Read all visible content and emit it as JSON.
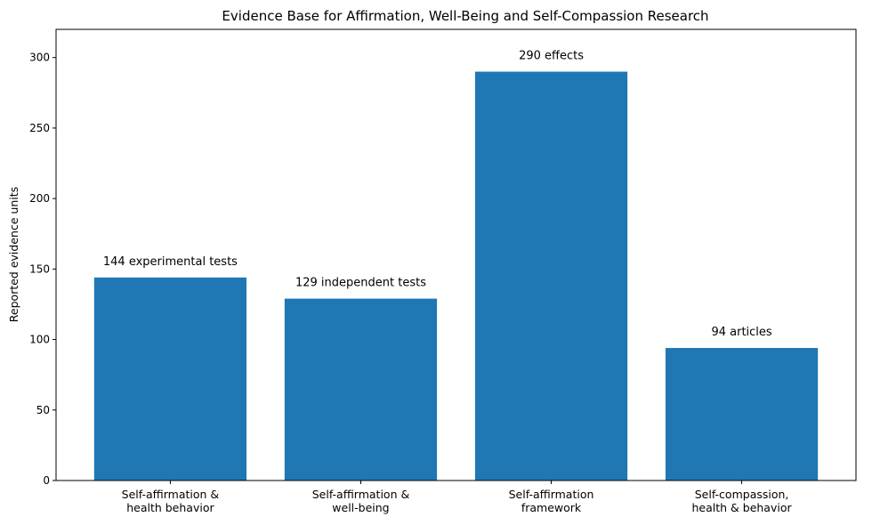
{
  "chart_data": {
    "type": "bar",
    "title": "Evidence Base for Affirmation, Well-Being and Self-Compassion Research",
    "ylabel": "Reported evidence units",
    "xlabel": "",
    "ylim": [
      0,
      320
    ],
    "yticks": [
      0,
      50,
      100,
      150,
      200,
      250,
      300
    ],
    "categories": [
      [
        "Self-affirmation &",
        "health behavior"
      ],
      [
        "Self-affirmation &",
        "well-being"
      ],
      [
        "Self-affirmation",
        "framework"
      ],
      [
        "Self-compassion,",
        "health & behavior"
      ]
    ],
    "values": [
      144,
      129,
      290,
      94
    ],
    "data_labels": [
      "144 experimental tests",
      "129 independent tests",
      "290 effects",
      "94 articles"
    ],
    "bar_color": "#1f77b4",
    "grid": false,
    "legend": "none"
  }
}
